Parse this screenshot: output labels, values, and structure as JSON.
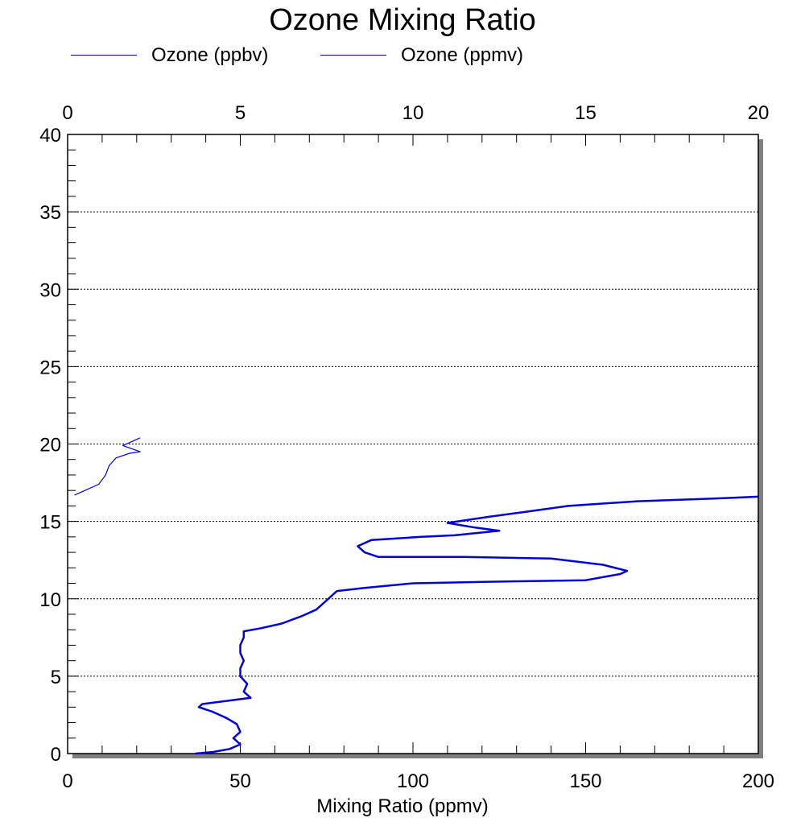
{
  "chart_data": {
    "type": "line",
    "title": "Ozone Mixing Ratio",
    "xlabel": "Mixing Ratio (ppmv)",
    "ylabel": "",
    "xlim_bottom": [
      0,
      200
    ],
    "xlim_top": [
      0,
      20
    ],
    "ylim": [
      0,
      40
    ],
    "x_ticks_bottom": [
      "0",
      "50",
      "100",
      "150",
      "200"
    ],
    "x_ticks_top": [
      "0",
      "5",
      "10",
      "15",
      "20"
    ],
    "y_ticks": [
      "0",
      "5",
      "10",
      "15",
      "20",
      "25",
      "30",
      "35",
      "40"
    ],
    "grid": "horizontal dotted",
    "legend_position": "top-left",
    "legend": [
      "Ozone (ppbv)",
      "Ozone (ppmv)"
    ],
    "series": [
      {
        "name": "Ozone (ppbv)",
        "axis": "bottom",
        "color": "#0000dd",
        "points": [
          [
            37,
            0
          ],
          [
            42,
            0.1
          ],
          [
            47,
            0.3
          ],
          [
            50,
            0.6
          ],
          [
            48,
            1.0
          ],
          [
            50,
            1.4
          ],
          [
            49,
            1.9
          ],
          [
            46,
            2.3
          ],
          [
            42,
            2.7
          ],
          [
            38,
            3.0
          ],
          [
            39,
            3.2
          ],
          [
            46,
            3.4
          ],
          [
            53,
            3.6
          ],
          [
            51,
            4.0
          ],
          [
            52,
            4.5
          ],
          [
            50,
            5.0
          ],
          [
            50,
            5.5
          ],
          [
            51,
            6.0
          ],
          [
            50,
            6.5
          ],
          [
            50,
            7.0
          ],
          [
            51,
            7.5
          ],
          [
            51,
            7.9
          ],
          [
            56,
            8.1
          ],
          [
            62,
            8.4
          ],
          [
            68,
            8.9
          ],
          [
            72,
            9.3
          ],
          [
            74,
            9.7
          ],
          [
            76,
            10.1
          ],
          [
            78,
            10.5
          ],
          [
            86,
            10.7
          ],
          [
            100,
            11.0
          ],
          [
            122,
            11.1
          ],
          [
            150,
            11.2
          ],
          [
            160,
            11.6
          ],
          [
            162,
            11.8
          ],
          [
            155,
            12.2
          ],
          [
            140,
            12.6
          ],
          [
            115,
            12.7
          ],
          [
            90,
            12.7
          ],
          [
            86,
            13.0
          ],
          [
            84,
            13.4
          ],
          [
            88,
            13.8
          ],
          [
            102,
            14.0
          ],
          [
            112,
            14.1
          ],
          [
            125,
            14.4
          ],
          [
            118,
            14.6
          ],
          [
            110,
            14.9
          ],
          [
            122,
            15.3
          ],
          [
            132,
            15.6
          ],
          [
            145,
            16.0
          ],
          [
            165,
            16.3
          ],
          [
            190,
            16.5
          ],
          [
            200,
            16.6
          ]
        ]
      },
      {
        "name": "Ozone (ppmv)",
        "axis": "top",
        "color": "#0000dd",
        "points": [
          [
            0.2,
            16.7
          ],
          [
            0.5,
            17.0
          ],
          [
            0.9,
            17.4
          ],
          [
            1.0,
            17.7
          ],
          [
            1.1,
            18.0
          ],
          [
            1.2,
            18.6
          ],
          [
            1.4,
            19.1
          ],
          [
            1.8,
            19.4
          ],
          [
            2.1,
            19.5
          ],
          [
            1.6,
            19.9
          ],
          [
            1.9,
            20.2
          ],
          [
            2.1,
            20.4
          ]
        ]
      }
    ]
  }
}
